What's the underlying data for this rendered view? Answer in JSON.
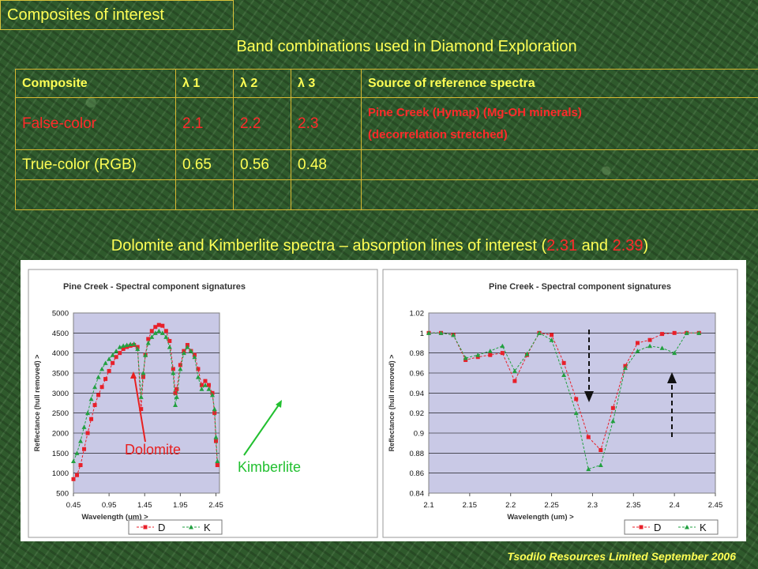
{
  "slide": {
    "title": "Composites of interest",
    "subtitle": "Band combinations used in Diamond Exploration",
    "footer": "Tsodilo Resources Limited September 2006"
  },
  "table": {
    "headers": [
      "Composite",
      "λ 1",
      "λ 2",
      "λ 3",
      "Source of reference spectra"
    ],
    "rows": [
      {
        "composite": "False-color",
        "l1": "2.1",
        "l2": "2.2",
        "l3": "2.3",
        "source_line1": "Pine Creek (Hymap) (Mg-OH minerals)",
        "source_line2": "(decorrelation stretched)"
      },
      {
        "composite": "True-color (RGB)",
        "l1": "0.65",
        "l2": "0.56",
        "l3": "0.48",
        "source_line1": "",
        "source_line2": ""
      },
      {
        "composite": "",
        "l1": "",
        "l2": "",
        "l3": "",
        "source_line1": "",
        "source_line2": ""
      }
    ]
  },
  "caption": {
    "before": "Dolomite and Kimberlite spectra – absorption lines of interest (",
    "v1": "2.31",
    "mid": " and ",
    "v2": "2.39",
    "after": ")"
  },
  "colors": {
    "text": "#ffff55",
    "highlight": "#ff2a2a",
    "border": "#d8b830",
    "dolomite": "#e8202a",
    "kimberlite": "#22a040",
    "plot_bg": "#c9c9e6"
  },
  "chart_data": [
    {
      "type": "line",
      "title": "Pine Creek - Spectral component signatures",
      "xlabel": "Wavelength (um) >",
      "ylabel": "Reflectance (hull removed) >",
      "xlim": [
        0.45,
        2.5
      ],
      "ylim": [
        500,
        5000
      ],
      "xticks": [
        "0.45",
        "0.95",
        "1.45",
        "1.95",
        "2.45"
      ],
      "yticks": [
        "500",
        "1000",
        "1500",
        "2000",
        "2500",
        "3000",
        "3500",
        "4000",
        "4500",
        "5000"
      ],
      "grid": true,
      "legend": "bottom-right",
      "annotations": [
        "Dolomite",
        "Kimberlite"
      ],
      "series": [
        {
          "name": "D",
          "points": [
            [
              0.45,
              850
            ],
            [
              0.5,
              950
            ],
            [
              0.55,
              1200
            ],
            [
              0.6,
              1600
            ],
            [
              0.65,
              2000
            ],
            [
              0.7,
              2350
            ],
            [
              0.75,
              2700
            ],
            [
              0.8,
              2950
            ],
            [
              0.85,
              3150
            ],
            [
              0.9,
              3350
            ],
            [
              0.95,
              3550
            ],
            [
              1.0,
              3750
            ],
            [
              1.05,
              3900
            ],
            [
              1.1,
              4000
            ],
            [
              1.15,
              4100
            ],
            [
              1.2,
              4150
            ],
            [
              1.25,
              4180
            ],
            [
              1.3,
              4200
            ],
            [
              1.35,
              4150
            ],
            [
              1.4,
              2600
            ],
            [
              1.43,
              3400
            ],
            [
              1.46,
              3950
            ],
            [
              1.5,
              4350
            ],
            [
              1.55,
              4550
            ],
            [
              1.6,
              4650
            ],
            [
              1.65,
              4700
            ],
            [
              1.7,
              4680
            ],
            [
              1.75,
              4550
            ],
            [
              1.8,
              4300
            ],
            [
              1.85,
              3600
            ],
            [
              1.88,
              3000
            ],
            [
              1.9,
              3100
            ],
            [
              1.95,
              3700
            ],
            [
              2.0,
              4050
            ],
            [
              2.05,
              4200
            ],
            [
              2.1,
              4050
            ],
            [
              2.15,
              3950
            ],
            [
              2.2,
              3600
            ],
            [
              2.25,
              3200
            ],
            [
              2.3,
              3300
            ],
            [
              2.35,
              3200
            ],
            [
              2.4,
              3000
            ],
            [
              2.43,
              2500
            ],
            [
              2.45,
              1800
            ],
            [
              2.47,
              1200
            ]
          ]
        },
        {
          "name": "K",
          "points": [
            [
              0.45,
              1300
            ],
            [
              0.5,
              1500
            ],
            [
              0.55,
              1800
            ],
            [
              0.6,
              2150
            ],
            [
              0.65,
              2500
            ],
            [
              0.7,
              2850
            ],
            [
              0.75,
              3150
            ],
            [
              0.8,
              3400
            ],
            [
              0.85,
              3600
            ],
            [
              0.9,
              3750
            ],
            [
              0.95,
              3850
            ],
            [
              1.0,
              3950
            ],
            [
              1.05,
              4050
            ],
            [
              1.1,
              4150
            ],
            [
              1.15,
              4180
            ],
            [
              1.2,
              4200
            ],
            [
              1.25,
              4220
            ],
            [
              1.3,
              4230
            ],
            [
              1.35,
              4100
            ],
            [
              1.4,
              2900
            ],
            [
              1.43,
              3500
            ],
            [
              1.46,
              3950
            ],
            [
              1.5,
              4250
            ],
            [
              1.55,
              4400
            ],
            [
              1.6,
              4500
            ],
            [
              1.65,
              4550
            ],
            [
              1.7,
              4500
            ],
            [
              1.75,
              4400
            ],
            [
              1.8,
              4150
            ],
            [
              1.85,
              3500
            ],
            [
              1.88,
              2700
            ],
            [
              1.9,
              2900
            ],
            [
              1.95,
              3600
            ],
            [
              2.0,
              4000
            ],
            [
              2.05,
              4150
            ],
            [
              2.1,
              4050
            ],
            [
              2.15,
              3900
            ],
            [
              2.2,
              3400
            ],
            [
              2.25,
              3100
            ],
            [
              2.3,
              3200
            ],
            [
              2.35,
              3100
            ],
            [
              2.4,
              2950
            ],
            [
              2.43,
              2600
            ],
            [
              2.45,
              1900
            ],
            [
              2.47,
              1300
            ]
          ]
        }
      ]
    },
    {
      "type": "line",
      "title": "Pine Creek - Spectral component signatures",
      "xlabel": "Wavelength (um) >",
      "ylabel": "Reflectance (hull removed) >",
      "xlim": [
        2.1,
        2.45
      ],
      "ylim": [
        0.84,
        1.02
      ],
      "xticks": [
        "2.1",
        "2.15",
        "2.2",
        "2.25",
        "2.3",
        "2.35",
        "2.4",
        "2.45"
      ],
      "yticks": [
        "0.84",
        "0.86",
        "0.88",
        "0.9",
        "0.92",
        "0.94",
        "0.96",
        "0.98",
        "1",
        "1.02"
      ],
      "grid": true,
      "legend": "bottom-right",
      "series": [
        {
          "name": "D",
          "points": [
            [
              2.1,
              1.0
            ],
            [
              2.115,
              1.0
            ],
            [
              2.13,
              0.998
            ],
            [
              2.145,
              0.973
            ],
            [
              2.16,
              0.976
            ],
            [
              2.175,
              0.978
            ],
            [
              2.19,
              0.98
            ],
            [
              2.205,
              0.952
            ],
            [
              2.22,
              0.978
            ],
            [
              2.235,
              1.0
            ],
            [
              2.25,
              0.998
            ],
            [
              2.265,
              0.97
            ],
            [
              2.28,
              0.934
            ],
            [
              2.295,
              0.896
            ],
            [
              2.31,
              0.883
            ],
            [
              2.325,
              0.925
            ],
            [
              2.34,
              0.967
            ],
            [
              2.355,
              0.99
            ],
            [
              2.37,
              0.993
            ],
            [
              2.385,
              0.999
            ],
            [
              2.4,
              1.0
            ],
            [
              2.415,
              1.0
            ],
            [
              2.43,
              1.0
            ]
          ]
        },
        {
          "name": "K",
          "points": [
            [
              2.1,
              1.0
            ],
            [
              2.115,
              1.0
            ],
            [
              2.13,
              0.998
            ],
            [
              2.145,
              0.975
            ],
            [
              2.16,
              0.978
            ],
            [
              2.175,
              0.982
            ],
            [
              2.19,
              0.987
            ],
            [
              2.205,
              0.962
            ],
            [
              2.22,
              0.979
            ],
            [
              2.235,
              1.0
            ],
            [
              2.25,
              0.993
            ],
            [
              2.265,
              0.958
            ],
            [
              2.28,
              0.92
            ],
            [
              2.295,
              0.864
            ],
            [
              2.31,
              0.868
            ],
            [
              2.325,
              0.912
            ],
            [
              2.34,
              0.965
            ],
            [
              2.355,
              0.982
            ],
            [
              2.37,
              0.987
            ],
            [
              2.385,
              0.985
            ],
            [
              2.4,
              0.98
            ],
            [
              2.415,
              1.0
            ],
            [
              2.43,
              1.0
            ]
          ]
        }
      ]
    }
  ]
}
